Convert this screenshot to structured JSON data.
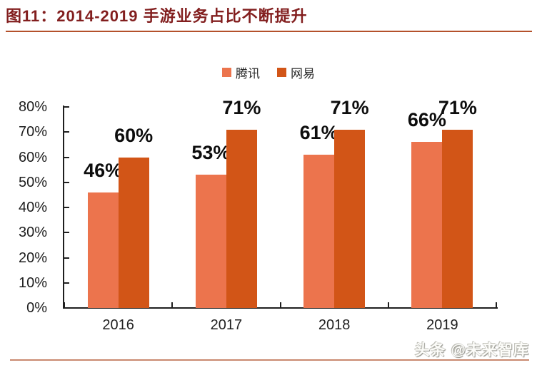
{
  "figure": {
    "watermark": "头条 @未来智库"
  },
  "chart_data": {
    "type": "bar",
    "title": "图11：2014-2019 手游业务占比不断提升",
    "categories": [
      "2016",
      "2017",
      "2018",
      "2019"
    ],
    "series": [
      {
        "name": "腾讯",
        "color": "#EC744D",
        "values": [
          46,
          53,
          61,
          66
        ]
      },
      {
        "name": "网易",
        "color": "#D25517",
        "values": [
          60,
          71,
          71,
          71
        ]
      }
    ],
    "data_labels": [
      [
        "46%",
        "53%",
        "61%",
        "66%"
      ],
      [
        "60%",
        "71%",
        "71%",
        "71%"
      ]
    ],
    "xlabel": "",
    "ylabel": "",
    "ylim": [
      0,
      80
    ],
    "ytick_step": 10,
    "yticks": [
      "0%",
      "10%",
      "20%",
      "30%",
      "40%",
      "50%",
      "60%",
      "70%",
      "80%"
    ],
    "value_format": "percent",
    "grid": false,
    "legend_position": "top",
    "data_label_position": "outside-end"
  }
}
